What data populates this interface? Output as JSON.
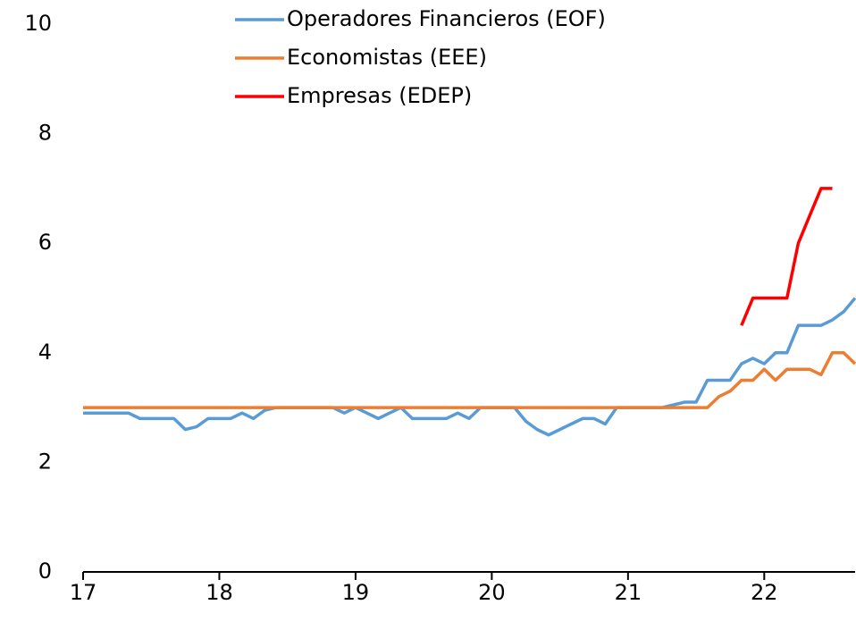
{
  "chart_data": {
    "type": "line",
    "x": [
      17,
      17.083,
      17.167,
      17.25,
      17.333,
      17.417,
      17.5,
      17.583,
      17.667,
      17.75,
      17.833,
      17.917,
      18,
      18.083,
      18.167,
      18.25,
      18.333,
      18.417,
      18.5,
      18.583,
      18.667,
      18.75,
      18.833,
      18.917,
      19,
      19.083,
      19.167,
      19.25,
      19.333,
      19.417,
      19.5,
      19.583,
      19.667,
      19.75,
      19.833,
      19.917,
      20,
      20.083,
      20.167,
      20.25,
      20.333,
      20.417,
      20.5,
      20.583,
      20.667,
      20.75,
      20.833,
      20.917,
      21,
      21.083,
      21.167,
      21.25,
      21.333,
      21.417,
      21.5,
      21.583,
      21.667,
      21.75,
      21.833,
      21.917,
      22,
      22.083,
      22.167,
      22.25,
      22.333,
      22.417,
      22.5,
      22.583,
      22.667
    ],
    "series": [
      {
        "name": "Operadores Financieros (EOF)",
        "color": "#5b9bd5",
        "values": [
          2.9,
          2.9,
          2.9,
          2.9,
          2.9,
          2.8,
          2.8,
          2.8,
          2.8,
          2.6,
          2.65,
          2.8,
          2.8,
          2.8,
          2.9,
          2.8,
          2.95,
          3.0,
          3.0,
          3.0,
          3.0,
          3.0,
          3.0,
          2.9,
          3.0,
          2.9,
          2.8,
          2.9,
          3.0,
          2.8,
          2.8,
          2.8,
          2.8,
          2.9,
          2.8,
          3.0,
          3.0,
          3.0,
          3.0,
          2.75,
          2.6,
          2.5,
          2.6,
          2.7,
          2.8,
          2.8,
          2.7,
          3.0,
          3.0,
          3.0,
          3.0,
          3.0,
          3.05,
          3.1,
          3.1,
          3.5,
          3.5,
          3.5,
          3.8,
          3.9,
          3.8,
          4.0,
          4.0,
          4.5,
          4.5,
          4.5,
          4.6,
          4.75,
          5.0
        ]
      },
      {
        "name": "Economistas (EEE)",
        "color": "#ed7d31",
        "values": [
          3.0,
          3.0,
          3.0,
          3.0,
          3.0,
          3.0,
          3.0,
          3.0,
          3.0,
          3.0,
          3.0,
          3.0,
          3.0,
          3.0,
          3.0,
          3.0,
          3.0,
          3.0,
          3.0,
          3.0,
          3.0,
          3.0,
          3.0,
          3.0,
          3.0,
          3.0,
          3.0,
          3.0,
          3.0,
          3.0,
          3.0,
          3.0,
          3.0,
          3.0,
          3.0,
          3.0,
          3.0,
          3.0,
          3.0,
          3.0,
          3.0,
          3.0,
          3.0,
          3.0,
          3.0,
          3.0,
          3.0,
          3.0,
          3.0,
          3.0,
          3.0,
          3.0,
          3.0,
          3.0,
          3.0,
          3.0,
          3.2,
          3.3,
          3.5,
          3.5,
          3.7,
          3.5,
          3.7,
          3.7,
          3.7,
          3.6,
          4.0,
          4.0,
          3.8
        ]
      },
      {
        "name": "Empresas (EDEP)",
        "color": "#ff0000",
        "values": [
          null,
          null,
          null,
          null,
          null,
          null,
          null,
          null,
          null,
          null,
          null,
          null,
          null,
          null,
          null,
          null,
          null,
          null,
          null,
          null,
          null,
          null,
          null,
          null,
          null,
          null,
          null,
          null,
          null,
          null,
          null,
          null,
          null,
          null,
          null,
          null,
          null,
          null,
          null,
          null,
          null,
          null,
          null,
          null,
          null,
          null,
          null,
          null,
          null,
          null,
          null,
          null,
          null,
          null,
          null,
          null,
          null,
          null,
          4.5,
          5.0,
          5.0,
          5.0,
          5.0,
          6.0,
          6.5,
          7.0,
          7.0,
          null,
          null
        ]
      }
    ],
    "xlim": [
      17,
      22.667
    ],
    "xticks": [
      17,
      18,
      19,
      20,
      21,
      22
    ],
    "ylim": [
      0,
      10
    ],
    "yticks": [
      0,
      2,
      4,
      6,
      8,
      10
    ],
    "grid": false,
    "legend": "top"
  }
}
